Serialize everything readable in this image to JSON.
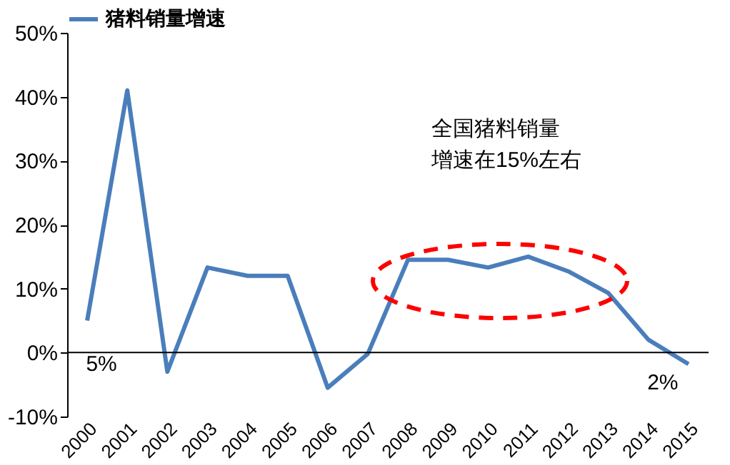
{
  "chart_data": {
    "type": "line",
    "categories": [
      "2000",
      "2001",
      "2002",
      "2003",
      "2004",
      "2005",
      "2006",
      "2007",
      "2008",
      "2009",
      "2010",
      "2011",
      "2012",
      "2013",
      "2014",
      "2015"
    ],
    "series": [
      {
        "name": "猪料销量增速",
        "color": "#4a7ebb",
        "values": [
          5,
          41,
          -3,
          13.3,
          12,
          12,
          -5.5,
          -0.2,
          14.5,
          14.5,
          13.3,
          15,
          12.7,
          9.3,
          2,
          -1.8
        ],
        "value_labels": [
          "5%",
          null,
          null,
          null,
          null,
          null,
          null,
          null,
          null,
          null,
          null,
          null,
          null,
          null,
          "2%",
          null
        ]
      }
    ],
    "ylim": [
      -10,
      50
    ],
    "yticks": [
      {
        "value": -10,
        "label": "-10%"
      },
      {
        "value": 0,
        "label": "0%"
      },
      {
        "value": 10,
        "label": "10%"
      },
      {
        "value": 20,
        "label": "20%"
      },
      {
        "value": 30,
        "label": "30%"
      },
      {
        "value": 40,
        "label": "40%"
      },
      {
        "value": 50,
        "label": "50%"
      }
    ],
    "legend": "top",
    "grid": false,
    "ref_lines": [
      {
        "axis": "y",
        "value": 0
      }
    ],
    "marker": "none",
    "line_style": "solid",
    "annotations": [
      "全国猪料销量增速在15%左右"
    ]
  }
}
